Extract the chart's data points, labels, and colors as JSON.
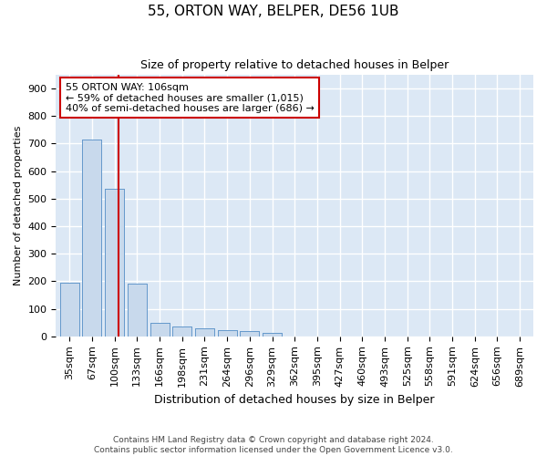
{
  "title": "55, ORTON WAY, BELPER, DE56 1UB",
  "subtitle": "Size of property relative to detached houses in Belper",
  "xlabel": "Distribution of detached houses by size in Belper",
  "ylabel": "Number of detached properties",
  "categories": [
    "35sqm",
    "67sqm",
    "100sqm",
    "133sqm",
    "166sqm",
    "198sqm",
    "231sqm",
    "264sqm",
    "296sqm",
    "329sqm",
    "362sqm",
    "395sqm",
    "427sqm",
    "460sqm",
    "493sqm",
    "525sqm",
    "558sqm",
    "591sqm",
    "624sqm",
    "656sqm",
    "689sqm"
  ],
  "values": [
    195,
    715,
    535,
    190,
    50,
    35,
    28,
    22,
    18,
    14,
    0,
    0,
    0,
    0,
    0,
    0,
    0,
    0,
    0,
    0,
    0
  ],
  "bar_color": "#c8d9ec",
  "bar_edge_color": "#6699cc",
  "background_color": "#dce8f5",
  "grid_color": "#ffffff",
  "vline_color": "#cc0000",
  "annotation_text": "55 ORTON WAY: 106sqm\n← 59% of detached houses are smaller (1,015)\n40% of semi-detached houses are larger (686) →",
  "annotation_box_color": "#cc0000",
  "footer": "Contains HM Land Registry data © Crown copyright and database right 2024.\nContains public sector information licensed under the Open Government Licence v3.0.",
  "ylim": [
    0,
    950
  ],
  "yticks": [
    0,
    100,
    200,
    300,
    400,
    500,
    600,
    700,
    800,
    900
  ],
  "title_fontsize": 11,
  "subtitle_fontsize": 9,
  "ylabel_fontsize": 8,
  "xlabel_fontsize": 9,
  "tick_fontsize": 8,
  "annot_fontsize": 8
}
